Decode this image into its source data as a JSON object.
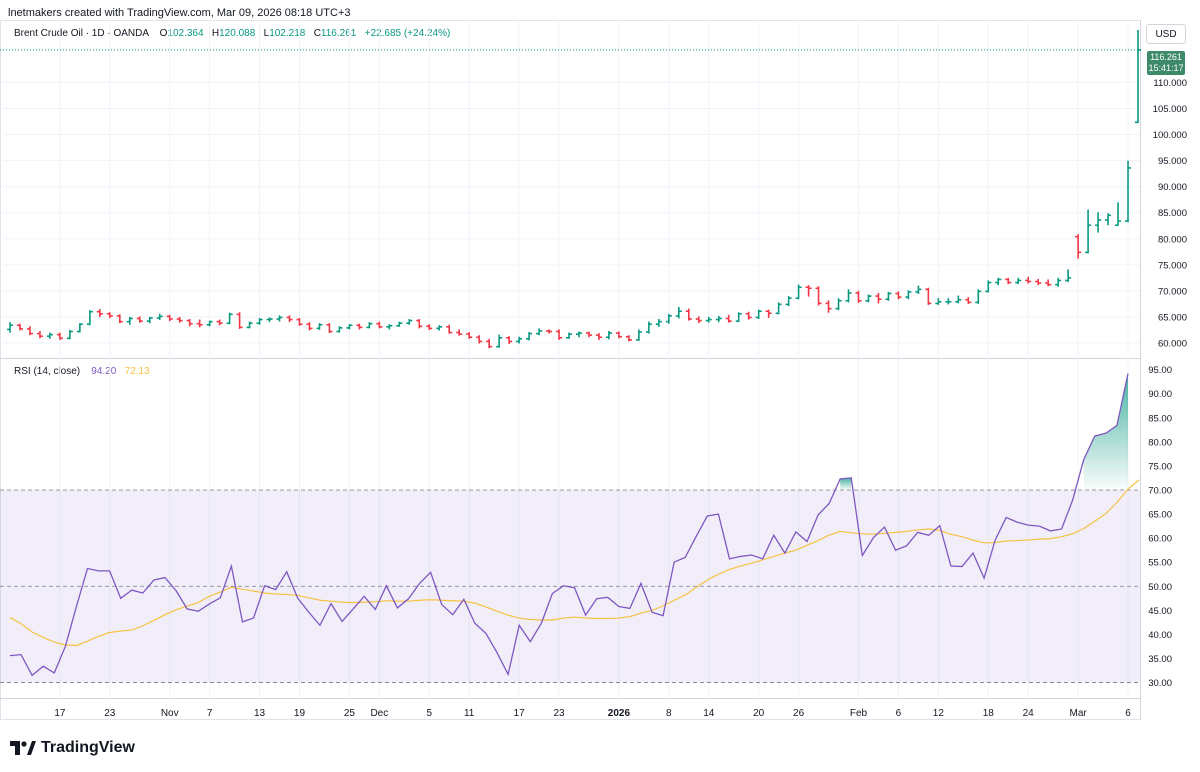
{
  "caption": "lnetmakers created with TradingView.com, Mar 09, 2026 08:18 UTC+3",
  "legend": {
    "symbol": "Brent Crude Oil · 1D · OANDA",
    "o_label": "O",
    "o_value": "102.364",
    "h_label": "H",
    "h_value": "120.088",
    "l_label": "L",
    "l_value": "102.218",
    "c_label": "C",
    "c_value": "116.261",
    "change": "+22.685 (+24.24%)"
  },
  "rsi_legend": {
    "name": "RSI (14, close)",
    "rsi_value": "94.20",
    "ma_value": "72.13"
  },
  "currency": "USD",
  "last_price_tag": {
    "price": "116.261",
    "countdown": "15:41:17"
  },
  "brand": {
    "name": "TradingView",
    "logo": "tradingview-logo-icon"
  },
  "colors": {
    "up": "#089981",
    "down": "#f23645",
    "rsi": "#7e57c2",
    "rsi_ma": "#f5c242",
    "band": "#7e57c2"
  },
  "chart_data": [
    {
      "type": "ohlc",
      "title": "Brent Crude Oil · 1D · OANDA",
      "ylim": [
        57.5,
        122
      ],
      "price_ticks": [
        "110.000",
        "105.000",
        "100.000",
        "95.000",
        "90.000",
        "85.000",
        "80.000",
        "75.000",
        "70.000",
        "65.000",
        "60.000"
      ],
      "x_labels": [
        "17",
        "23",
        "Nov",
        "7",
        "13",
        "19",
        "25",
        "Dec",
        "5",
        "11",
        "17",
        "23",
        "2026",
        "8",
        "14",
        "20",
        "26",
        "Feb",
        "6",
        "12",
        "18",
        "24",
        "Mar",
        "6"
      ],
      "bars": [
        {
          "o": 62.6,
          "h": 64.0,
          "l": 62.0,
          "c": 63.4
        },
        {
          "o": 63.4,
          "h": 63.7,
          "l": 62.4,
          "c": 62.7
        },
        {
          "o": 62.7,
          "h": 63.2,
          "l": 61.5,
          "c": 61.8
        },
        {
          "o": 61.8,
          "h": 62.3,
          "l": 60.9,
          "c": 61.3
        },
        {
          "o": 61.3,
          "h": 62.0,
          "l": 60.8,
          "c": 61.6
        },
        {
          "o": 61.6,
          "h": 62.0,
          "l": 60.6,
          "c": 60.9
        },
        {
          "o": 60.9,
          "h": 62.5,
          "l": 60.7,
          "c": 62.2
        },
        {
          "o": 62.2,
          "h": 63.8,
          "l": 62.0,
          "c": 63.6
        },
        {
          "o": 63.6,
          "h": 66.3,
          "l": 63.4,
          "c": 66.0
        },
        {
          "o": 66.0,
          "h": 66.5,
          "l": 65.0,
          "c": 65.6
        },
        {
          "o": 65.6,
          "h": 65.9,
          "l": 64.8,
          "c": 65.2
        },
        {
          "o": 65.2,
          "h": 65.5,
          "l": 63.8,
          "c": 64.1
        },
        {
          "o": 64.1,
          "h": 65.0,
          "l": 63.5,
          "c": 64.7
        },
        {
          "o": 64.7,
          "h": 65.1,
          "l": 63.9,
          "c": 64.2
        },
        {
          "o": 64.2,
          "h": 65.0,
          "l": 63.8,
          "c": 64.8
        },
        {
          "o": 64.8,
          "h": 65.6,
          "l": 64.4,
          "c": 65.1
        },
        {
          "o": 65.1,
          "h": 65.4,
          "l": 64.2,
          "c": 64.6
        },
        {
          "o": 64.6,
          "h": 65.0,
          "l": 63.9,
          "c": 64.3
        },
        {
          "o": 64.3,
          "h": 64.6,
          "l": 63.2,
          "c": 63.7
        },
        {
          "o": 63.7,
          "h": 64.5,
          "l": 63.0,
          "c": 63.5
        },
        {
          "o": 63.5,
          "h": 64.3,
          "l": 63.2,
          "c": 64.1
        },
        {
          "o": 64.1,
          "h": 64.5,
          "l": 63.4,
          "c": 63.8
        },
        {
          "o": 63.8,
          "h": 65.8,
          "l": 63.6,
          "c": 65.5
        },
        {
          "o": 65.5,
          "h": 65.9,
          "l": 62.7,
          "c": 63.0
        },
        {
          "o": 63.0,
          "h": 64.1,
          "l": 62.8,
          "c": 63.8
        },
        {
          "o": 63.8,
          "h": 64.8,
          "l": 63.5,
          "c": 64.5
        },
        {
          "o": 64.5,
          "h": 64.9,
          "l": 64.0,
          "c": 64.6
        },
        {
          "o": 64.6,
          "h": 65.3,
          "l": 64.1,
          "c": 64.9
        },
        {
          "o": 64.9,
          "h": 65.3,
          "l": 64.0,
          "c": 64.5
        },
        {
          "o": 64.5,
          "h": 64.8,
          "l": 63.3,
          "c": 63.6
        },
        {
          "o": 63.6,
          "h": 64.0,
          "l": 62.4,
          "c": 62.8
        },
        {
          "o": 62.8,
          "h": 63.8,
          "l": 62.5,
          "c": 63.5
        },
        {
          "o": 63.5,
          "h": 63.8,
          "l": 61.9,
          "c": 62.2
        },
        {
          "o": 62.2,
          "h": 63.2,
          "l": 62.0,
          "c": 62.9
        },
        {
          "o": 62.9,
          "h": 63.6,
          "l": 62.6,
          "c": 63.4
        },
        {
          "o": 63.4,
          "h": 63.7,
          "l": 62.6,
          "c": 63.0
        },
        {
          "o": 63.0,
          "h": 64.0,
          "l": 62.8,
          "c": 63.7
        },
        {
          "o": 63.7,
          "h": 64.1,
          "l": 62.8,
          "c": 63.1
        },
        {
          "o": 63.1,
          "h": 63.6,
          "l": 62.6,
          "c": 63.3
        },
        {
          "o": 63.3,
          "h": 64.1,
          "l": 63.1,
          "c": 63.8
        },
        {
          "o": 63.8,
          "h": 64.6,
          "l": 63.5,
          "c": 64.3
        },
        {
          "o": 64.3,
          "h": 64.6,
          "l": 62.8,
          "c": 63.2
        },
        {
          "o": 63.2,
          "h": 63.6,
          "l": 62.5,
          "c": 62.8
        },
        {
          "o": 62.8,
          "h": 63.4,
          "l": 62.4,
          "c": 63.1
        },
        {
          "o": 63.1,
          "h": 63.5,
          "l": 61.8,
          "c": 62.0
        },
        {
          "o": 62.0,
          "h": 62.6,
          "l": 61.4,
          "c": 61.7
        },
        {
          "o": 61.7,
          "h": 62.1,
          "l": 60.8,
          "c": 61.1
        },
        {
          "o": 61.1,
          "h": 61.5,
          "l": 59.9,
          "c": 60.3
        },
        {
          "o": 60.3,
          "h": 60.8,
          "l": 59.0,
          "c": 59.3
        },
        {
          "o": 59.3,
          "h": 61.6,
          "l": 59.1,
          "c": 61.0
        },
        {
          "o": 61.0,
          "h": 61.3,
          "l": 59.8,
          "c": 60.3
        },
        {
          "o": 60.3,
          "h": 61.2,
          "l": 59.9,
          "c": 60.8
        },
        {
          "o": 60.8,
          "h": 62.1,
          "l": 60.5,
          "c": 61.8
        },
        {
          "o": 61.8,
          "h": 62.8,
          "l": 61.5,
          "c": 62.3
        },
        {
          "o": 62.3,
          "h": 62.6,
          "l": 61.8,
          "c": 62.2
        },
        {
          "o": 62.2,
          "h": 62.6,
          "l": 60.6,
          "c": 61.0
        },
        {
          "o": 61.0,
          "h": 62.0,
          "l": 60.8,
          "c": 61.7
        },
        {
          "o": 61.7,
          "h": 62.2,
          "l": 61.1,
          "c": 61.9
        },
        {
          "o": 61.9,
          "h": 62.2,
          "l": 61.1,
          "c": 61.5
        },
        {
          "o": 61.5,
          "h": 61.9,
          "l": 60.6,
          "c": 61.1
        },
        {
          "o": 61.1,
          "h": 62.3,
          "l": 60.7,
          "c": 61.9
        },
        {
          "o": 61.9,
          "h": 62.2,
          "l": 60.9,
          "c": 61.2
        },
        {
          "o": 61.2,
          "h": 61.5,
          "l": 60.3,
          "c": 60.6
        },
        {
          "o": 60.6,
          "h": 62.6,
          "l": 60.4,
          "c": 62.1
        },
        {
          "o": 62.1,
          "h": 64.1,
          "l": 61.8,
          "c": 63.6
        },
        {
          "o": 63.6,
          "h": 64.6,
          "l": 63.1,
          "c": 64.1
        },
        {
          "o": 64.1,
          "h": 65.6,
          "l": 63.7,
          "c": 65.2
        },
        {
          "o": 65.2,
          "h": 66.9,
          "l": 64.7,
          "c": 66.1
        },
        {
          "o": 66.1,
          "h": 66.6,
          "l": 64.3,
          "c": 64.6
        },
        {
          "o": 64.6,
          "h": 65.1,
          "l": 63.8,
          "c": 64.3
        },
        {
          "o": 64.3,
          "h": 65.0,
          "l": 63.9,
          "c": 64.5
        },
        {
          "o": 64.5,
          "h": 65.2,
          "l": 64.0,
          "c": 64.7
        },
        {
          "o": 64.7,
          "h": 65.4,
          "l": 63.9,
          "c": 64.2
        },
        {
          "o": 64.2,
          "h": 65.9,
          "l": 64.0,
          "c": 65.6
        },
        {
          "o": 65.6,
          "h": 66.0,
          "l": 64.5,
          "c": 64.9
        },
        {
          "o": 64.9,
          "h": 66.4,
          "l": 64.6,
          "c": 66.1
        },
        {
          "o": 66.1,
          "h": 66.4,
          "l": 64.8,
          "c": 65.7
        },
        {
          "o": 65.7,
          "h": 67.8,
          "l": 65.5,
          "c": 67.4
        },
        {
          "o": 67.4,
          "h": 69.0,
          "l": 67.1,
          "c": 68.6
        },
        {
          "o": 68.6,
          "h": 71.2,
          "l": 68.4,
          "c": 70.7
        },
        {
          "o": 70.7,
          "h": 71.1,
          "l": 68.9,
          "c": 70.5
        },
        {
          "o": 70.5,
          "h": 70.9,
          "l": 67.2,
          "c": 67.6
        },
        {
          "o": 67.6,
          "h": 68.2,
          "l": 65.8,
          "c": 66.6
        },
        {
          "o": 66.6,
          "h": 68.6,
          "l": 66.3,
          "c": 68.1
        },
        {
          "o": 68.1,
          "h": 70.3,
          "l": 67.8,
          "c": 69.6
        },
        {
          "o": 69.6,
          "h": 70.0,
          "l": 67.7,
          "c": 68.1
        },
        {
          "o": 68.1,
          "h": 69.3,
          "l": 67.8,
          "c": 69.0
        },
        {
          "o": 69.0,
          "h": 69.6,
          "l": 67.6,
          "c": 68.4
        },
        {
          "o": 68.4,
          "h": 69.8,
          "l": 68.1,
          "c": 69.5
        },
        {
          "o": 69.5,
          "h": 69.9,
          "l": 68.4,
          "c": 68.8
        },
        {
          "o": 68.8,
          "h": 70.1,
          "l": 68.4,
          "c": 69.8
        },
        {
          "o": 69.8,
          "h": 71.0,
          "l": 69.4,
          "c": 70.3
        },
        {
          "o": 70.3,
          "h": 70.6,
          "l": 67.3,
          "c": 67.6
        },
        {
          "o": 67.6,
          "h": 68.6,
          "l": 67.3,
          "c": 67.9
        },
        {
          "o": 67.9,
          "h": 68.6,
          "l": 67.4,
          "c": 67.9
        },
        {
          "o": 67.9,
          "h": 69.1,
          "l": 67.6,
          "c": 68.3
        },
        {
          "o": 68.3,
          "h": 68.8,
          "l": 67.5,
          "c": 67.8
        },
        {
          "o": 67.8,
          "h": 70.3,
          "l": 67.5,
          "c": 69.9
        },
        {
          "o": 69.9,
          "h": 72.0,
          "l": 69.7,
          "c": 71.6
        },
        {
          "o": 71.6,
          "h": 72.5,
          "l": 71.1,
          "c": 72.2
        },
        {
          "o": 72.2,
          "h": 72.5,
          "l": 71.3,
          "c": 71.6
        },
        {
          "o": 71.6,
          "h": 72.5,
          "l": 71.3,
          "c": 72.0
        },
        {
          "o": 72.0,
          "h": 72.7,
          "l": 71.4,
          "c": 71.8
        },
        {
          "o": 71.8,
          "h": 72.3,
          "l": 71.1,
          "c": 71.5
        },
        {
          "o": 71.5,
          "h": 72.2,
          "l": 70.9,
          "c": 71.2
        },
        {
          "o": 71.2,
          "h": 72.5,
          "l": 70.8,
          "c": 72.0
        },
        {
          "o": 72.0,
          "h": 74.1,
          "l": 71.7,
          "c": 72.5
        },
        {
          "o": 80.4,
          "h": 80.9,
          "l": 76.2,
          "c": 77.4
        },
        {
          "o": 77.4,
          "h": 85.6,
          "l": 77.2,
          "c": 82.6
        },
        {
          "o": 82.6,
          "h": 85.1,
          "l": 81.2,
          "c": 83.6
        },
        {
          "o": 83.6,
          "h": 84.9,
          "l": 82.6,
          "c": 84.5
        },
        {
          "o": 82.6,
          "h": 87.0,
          "l": 82.5,
          "c": 83.4
        },
        {
          "o": 83.4,
          "h": 95.0,
          "l": 83.2,
          "c": 93.6
        },
        {
          "o": 102.364,
          "h": 120.088,
          "l": 102.218,
          "c": 116.261
        }
      ]
    },
    {
      "type": "line",
      "title": "RSI (14, close)",
      "ylim": [
        27,
        97
      ],
      "rsi_ticks": [
        "95.00",
        "90.00",
        "85.00",
        "80.00",
        "75.00",
        "70.00",
        "65.00",
        "60.00",
        "55.00",
        "50.00",
        "45.00",
        "40.00",
        "35.00",
        "30.00"
      ],
      "bands": {
        "upper": 70,
        "middle": 50,
        "lower": 30
      },
      "series": [
        {
          "name": "RSI",
          "values": [
            35.6,
            35.8,
            31.5,
            33.4,
            32.0,
            37.5,
            45.8,
            53.7,
            53.2,
            53.2,
            47.5,
            49.2,
            48.6,
            51.3,
            51.8,
            49.1,
            45.3,
            44.8,
            46.3,
            47.6,
            54.2,
            42.6,
            43.4,
            50.1,
            49.3,
            53.0,
            47.5,
            44.6,
            41.9,
            46.4,
            42.7,
            45.3,
            47.9,
            45.2,
            50.1,
            45.5,
            47.4,
            50.6,
            52.9,
            46.2,
            44.1,
            47.3,
            42.3,
            40.2,
            36.2,
            31.7,
            41.9,
            38.5,
            42.3,
            48.5,
            50.1,
            49.7,
            44.0,
            47.4,
            47.7,
            45.8,
            45.4,
            50.6,
            44.6,
            43.9,
            55.0,
            56.0,
            60.4,
            64.6,
            65.0,
            55.7,
            56.2,
            56.5,
            55.7,
            60.6,
            56.9,
            61.3,
            59.3,
            64.8,
            67.2,
            72.3,
            72.5,
            56.4,
            60.1,
            62.3,
            57.5,
            58.4,
            61.2,
            60.6,
            62.6,
            54.2,
            54.1,
            56.9,
            51.7,
            59.6,
            64.3,
            63.3,
            62.7,
            62.5,
            61.5,
            61.9,
            67.9,
            76.3,
            81.2,
            81.8,
            83.4,
            94.2
          ]
        },
        {
          "name": "MA",
          "values": [
            43.5,
            42.2,
            40.5,
            39.4,
            38.4,
            37.8,
            37.7,
            38.6,
            39.6,
            40.4,
            40.7,
            40.9,
            41.8,
            42.9,
            44.1,
            45.1,
            45.9,
            46.6,
            47.9,
            48.8,
            49.8,
            49.4,
            49.0,
            48.6,
            48.4,
            48.3,
            48.1,
            47.6,
            47.1,
            46.9,
            46.7,
            46.6,
            46.7,
            46.8,
            47.0,
            46.9,
            46.9,
            47.1,
            47.2,
            47.1,
            47.0,
            46.9,
            46.5,
            45.7,
            44.8,
            44.0,
            43.4,
            43.1,
            43.0,
            43.0,
            43.4,
            43.6,
            43.4,
            43.3,
            43.3,
            43.4,
            43.7,
            44.4,
            45.0,
            45.9,
            47.1,
            48.2,
            49.8,
            51.3,
            52.5,
            53.5,
            54.2,
            54.8,
            55.5,
            56.2,
            56.9,
            57.5,
            58.5,
            59.5,
            60.6,
            61.4,
            61.1,
            60.9,
            60.8,
            61.0,
            61.2,
            61.4,
            61.7,
            61.9,
            61.6,
            60.8,
            60.3,
            59.6,
            59.0,
            59.1,
            59.4,
            59.5,
            59.6,
            59.8,
            59.9,
            60.3,
            60.9,
            62.0,
            63.5,
            65.1,
            67.4,
            70.2,
            72.13
          ]
        }
      ]
    }
  ]
}
